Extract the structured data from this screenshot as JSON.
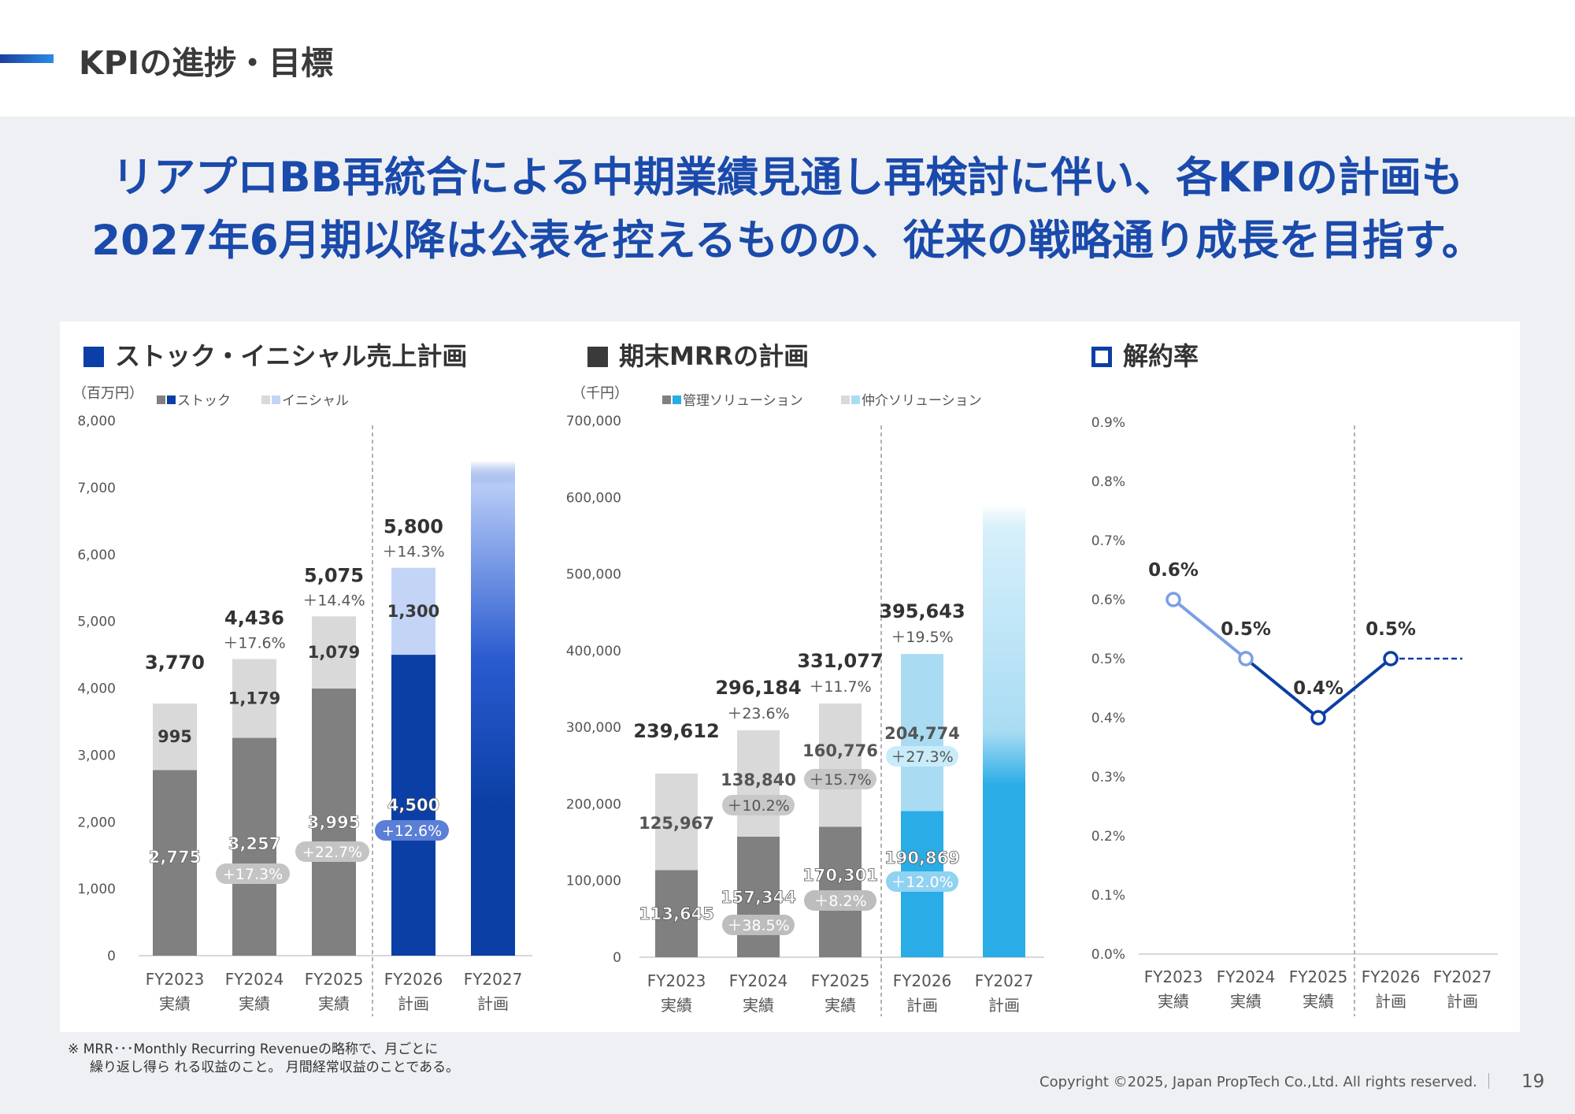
{
  "header": {
    "title": "KPIの進捗・目標"
  },
  "headline": {
    "line1": "リアプロBB再統合による中期業績見通し再検討に伴い、各KPIの計画も",
    "line2": "2027年6月期以降は公表を控えるものの、従来の戦略通り成長を目指す。"
  },
  "colors": {
    "actual_dark": "#808080",
    "actual_light": "#d9d9d9",
    "plan_dark_blue": "#0b3fa5",
    "plan_light_blue": "#c3d4f7",
    "plan_cyan": "#2aace6",
    "plan_light_cyan": "#a9dcf3",
    "headline": "#1a4aab"
  },
  "chart_data": [
    {
      "type": "bar",
      "title": "ストック・イニシャル売上計画",
      "unit": "（百万円）",
      "legend": [
        "ストック",
        "イニシャル"
      ],
      "categories": [
        "FY2023",
        "FY2024",
        "FY2025",
        "FY2026",
        "FY2027"
      ],
      "category_sub": [
        "実績",
        "実績",
        "実績",
        "計画",
        "計画"
      ],
      "ylim": [
        0,
        8000
      ],
      "yticks": [
        0,
        1000,
        2000,
        3000,
        4000,
        5000,
        6000,
        7000,
        8000
      ],
      "ytick_labels": [
        "0",
        "1,000",
        "2,000",
        "3,000",
        "4,000",
        "5,000",
        "6,000",
        "7,000",
        "8,000"
      ],
      "series": [
        {
          "name": "ストック",
          "values": [
            2775,
            3257,
            3995,
            4500,
            null
          ],
          "labels": [
            "2,775",
            "3,257",
            "3,995",
            "4,500",
            ""
          ]
        },
        {
          "name": "イニシャル",
          "values": [
            995,
            1179,
            1079,
            1300,
            null
          ],
          "labels": [
            "995",
            "1,179",
            "1,079",
            "1,300",
            ""
          ]
        }
      ],
      "totals": [
        "3,770",
        "4,436",
        "5,075",
        "5,800",
        ""
      ],
      "total_growth": [
        "",
        "＋17.6%",
        "＋14.4%",
        "＋14.3%",
        ""
      ],
      "stock_growth": [
        "",
        "+17.3%",
        "+22.7%",
        "+12.6%",
        ""
      ],
      "fy2027": "undisclosed plan (gradient bar)"
    },
    {
      "type": "bar",
      "title": "期末MRRの計画",
      "unit": "（千円）",
      "legend": [
        "管理ソリューション",
        "仲介ソリューション"
      ],
      "categories": [
        "FY2023",
        "FY2024",
        "FY2025",
        "FY2026",
        "FY2027"
      ],
      "category_sub": [
        "実績",
        "実績",
        "実績",
        "計画",
        "計画"
      ],
      "ylim": [
        0,
        700000
      ],
      "yticks": [
        0,
        100000,
        200000,
        300000,
        400000,
        500000,
        600000,
        700000
      ],
      "ytick_labels": [
        "0",
        "100,000",
        "200,000",
        "300,000",
        "400,000",
        "500,000",
        "600,000",
        "700,000"
      ],
      "series": [
        {
          "name": "管理ソリューション",
          "values": [
            113645,
            157344,
            170301,
            190869,
            null
          ],
          "labels": [
            "113,645",
            "157,344",
            "170,301",
            "190,869",
            ""
          ]
        },
        {
          "name": "仲介ソリューション",
          "values": [
            125967,
            138840,
            160776,
            204774,
            null
          ],
          "labels": [
            "125,967",
            "138,840",
            "160,776",
            "204,774",
            ""
          ]
        }
      ],
      "totals": [
        "239,612",
        "296,184",
        "331,077",
        "395,643",
        ""
      ],
      "total_growth": [
        "",
        "＋23.6%",
        "＋11.7%",
        "＋19.5%",
        ""
      ],
      "mgmt_growth": [
        "",
        "＋38.5%",
        "＋8.2%",
        "＋12.0%",
        ""
      ],
      "brokerage_growth": [
        "",
        "＋10.2%",
        "＋15.7%",
        "＋27.3%",
        ""
      ],
      "fy2027": "undisclosed plan (gradient bar)"
    },
    {
      "type": "line",
      "title": "解約率",
      "categories": [
        "FY2023",
        "FY2024",
        "FY2025",
        "FY2026",
        "FY2027"
      ],
      "category_sub": [
        "実績",
        "実績",
        "実績",
        "計画",
        "計画"
      ],
      "ylim": [
        0,
        0.9
      ],
      "yticks": [
        0,
        0.1,
        0.2,
        0.3,
        0.4,
        0.5,
        0.6,
        0.7,
        0.8,
        0.9
      ],
      "ytick_labels": [
        "0.0%",
        "0.1%",
        "0.2%",
        "0.3%",
        "0.4%",
        "0.5%",
        "0.6%",
        "0.7%",
        "0.8%",
        "0.9%"
      ],
      "series": [
        {
          "values": [
            0.6,
            0.5,
            0.4,
            0.5,
            0.5
          ],
          "labels": [
            "0.6%",
            "0.5%",
            "0.4%",
            "0.5%",
            ""
          ]
        }
      ]
    }
  ],
  "footnote": {
    "line1": "※ MRR･･･Monthly Recurring Revenueの略称で、月ごとに",
    "line2": "繰り返し得ら れる収益のこと。 月間経常収益のことである。"
  },
  "footer": {
    "copyright": "Copyright ©2025, Japan PropTech Co.,Ltd. All rights reserved.",
    "page": "19"
  }
}
